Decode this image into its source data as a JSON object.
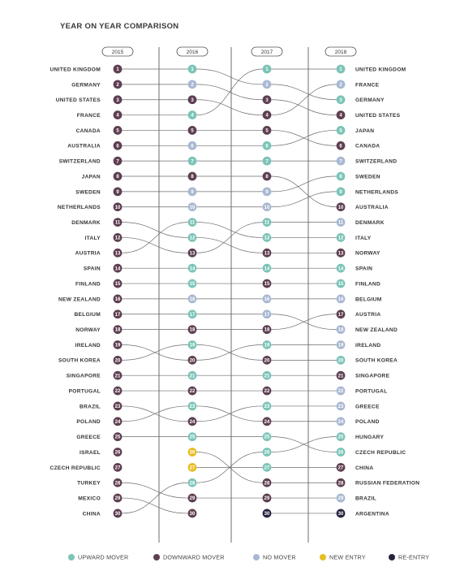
{
  "title": "YEAR ON YEAR COMPARISON",
  "chart_data": {
    "type": "bump",
    "years": [
      "2015",
      "2016",
      "2017",
      "2018"
    ],
    "colors": {
      "upward": "#7cc4b8",
      "downward": "#5e3f52",
      "none": "#a9b8d2",
      "new": "#e7bd22",
      "reentry": "#262540"
    },
    "countries_2015": [
      "UNITED KINGDOM",
      "GERMANY",
      "UNITED STATES",
      "FRANCE",
      "CANADA",
      "AUSTRALIA",
      "SWITZERLAND",
      "JAPAN",
      "SWEDEN",
      "NETHERLANDS",
      "DENMARK",
      "ITALY",
      "AUSTRIA",
      "SPAIN",
      "FINLAND",
      "NEW ZEALAND",
      "BELGIUM",
      "NORWAY",
      "IRELAND",
      "SOUTH KOREA",
      "SINGAPORE",
      "PORTUGAL",
      "BRAZIL",
      "POLAND",
      "GREECE",
      "ISRAEL",
      "CZECH REPUBLIC",
      "TURKEY",
      "MEXICO",
      "CHINA"
    ],
    "countries_2018": [
      "UNITED KINGDOM",
      "FRANCE",
      "GERMANY",
      "UNITED STATES",
      "JAPAN",
      "CANADA",
      "SWITZERLAND",
      "SWEDEN",
      "NETHERLANDS",
      "AUSTRALIA",
      "DENMARK",
      "ITALY",
      "NORWAY",
      "SPAIN",
      "FINLAND",
      "BELGIUM",
      "AUSTRIA",
      "NEW ZEALAND",
      "IRELAND",
      "SOUTH KOREA",
      "SINGAPORE",
      "PORTUGAL",
      "GREECE",
      "POLAND",
      "HUNGARY",
      "CZECH REPUBLIC",
      "CHINA",
      "RUSSIAN FEDERATION",
      "BRAZIL",
      "ARGENTINA"
    ],
    "dot_status": {
      "2015": [
        "downward",
        "downward",
        "downward",
        "downward",
        "downward",
        "downward",
        "downward",
        "downward",
        "downward",
        "downward",
        "downward",
        "downward",
        "downward",
        "downward",
        "downward",
        "downward",
        "downward",
        "downward",
        "downward",
        "downward",
        "downward",
        "downward",
        "downward",
        "downward",
        "downward",
        "downward",
        "downward",
        "downward",
        "downward",
        "downward"
      ],
      "2016": [
        "upward",
        "none",
        "downward",
        "upward",
        "downward",
        "none",
        "upward",
        "downward",
        "none",
        "none",
        "upward",
        "upward",
        "downward",
        "upward",
        "upward",
        "none",
        "upward",
        "downward",
        "upward",
        "downward",
        "upward",
        "downward",
        "upward",
        "downward",
        "upward",
        "new",
        "new",
        "upward",
        "downward",
        "downward"
      ],
      "2017": [
        "upward",
        "none",
        "downward",
        "downward",
        "downward",
        "upward",
        "upward",
        "downward",
        "none",
        "none",
        "upward",
        "upward",
        "downward",
        "upward",
        "downward",
        "none",
        "none",
        "downward",
        "upward",
        "downward",
        "upward",
        "downward",
        "upward",
        "downward",
        "upward",
        "upward",
        "upward",
        "downward",
        "downward",
        "reentry"
      ],
      "2018": [
        "upward",
        "none",
        "upward",
        "downward",
        "upward",
        "downward",
        "none",
        "upward",
        "upward",
        "downward",
        "none",
        "upward",
        "downward",
        "upward",
        "upward",
        "none",
        "downward",
        "none",
        "none",
        "upward",
        "downward",
        "none",
        "none",
        "none",
        "upward",
        "upward",
        "downward",
        "downward",
        "none",
        "reentry"
      ]
    },
    "links": [
      [
        [
          1,
          1
        ],
        [
          2,
          2
        ],
        [
          3,
          3
        ],
        [
          4,
          4
        ],
        [
          5,
          5
        ],
        [
          6,
          6
        ],
        [
          7,
          7
        ],
        [
          8,
          8
        ],
        [
          9,
          9
        ],
        [
          10,
          10
        ],
        [
          11,
          12
        ],
        [
          12,
          13
        ],
        [
          13,
          11
        ],
        [
          14,
          14
        ],
        [
          15,
          15
        ],
        [
          16,
          16
        ],
        [
          17,
          17
        ],
        [
          18,
          18
        ],
        [
          19,
          20
        ],
        [
          20,
          19
        ],
        [
          21,
          21
        ],
        [
          22,
          22
        ],
        [
          23,
          24
        ],
        [
          24,
          23
        ],
        [
          25,
          25
        ],
        [
          28,
          29
        ],
        [
          29,
          30
        ],
        [
          30,
          28
        ]
      ],
      [
        [
          1,
          2
        ],
        [
          2,
          3
        ],
        [
          3,
          4
        ],
        [
          4,
          1
        ],
        [
          5,
          5
        ],
        [
          6,
          6
        ],
        [
          7,
          7
        ],
        [
          8,
          8
        ],
        [
          9,
          9
        ],
        [
          10,
          10
        ],
        [
          11,
          12
        ],
        [
          12,
          13
        ],
        [
          13,
          11
        ],
        [
          14,
          14
        ],
        [
          15,
          15
        ],
        [
          16,
          16
        ],
        [
          17,
          17
        ],
        [
          18,
          18
        ],
        [
          19,
          20
        ],
        [
          20,
          19
        ],
        [
          21,
          21
        ],
        [
          22,
          22
        ],
        [
          23,
          24
        ],
        [
          24,
          23
        ],
        [
          25,
          25
        ],
        [
          26,
          28
        ],
        [
          27,
          27
        ],
        [
          28,
          26
        ],
        [
          29,
          29
        ]
      ],
      [
        [
          1,
          1
        ],
        [
          2,
          3
        ],
        [
          3,
          4
        ],
        [
          4,
          2
        ],
        [
          5,
          6
        ],
        [
          6,
          5
        ],
        [
          7,
          7
        ],
        [
          8,
          10
        ],
        [
          9,
          8
        ],
        [
          10,
          9
        ],
        [
          11,
          11
        ],
        [
          12,
          12
        ],
        [
          13,
          13
        ],
        [
          14,
          14
        ],
        [
          15,
          15
        ],
        [
          16,
          16
        ],
        [
          17,
          18
        ],
        [
          18,
          17
        ],
        [
          19,
          19
        ],
        [
          20,
          20
        ],
        [
          21,
          21
        ],
        [
          22,
          22
        ],
        [
          23,
          23
        ],
        [
          24,
          24
        ],
        [
          25,
          26
        ],
        [
          26,
          25
        ],
        [
          27,
          27
        ],
        [
          28,
          28
        ],
        [
          29,
          29
        ],
        [
          30,
          30
        ]
      ]
    ],
    "legend": [
      {
        "key": "upward",
        "label": "UPWARD MOVER"
      },
      {
        "key": "downward",
        "label": "DOWNWARD MOVER"
      },
      {
        "key": "none",
        "label": "NO MOVER"
      },
      {
        "key": "new",
        "label": "NEW ENTRY"
      },
      {
        "key": "reentry",
        "label": "RE-ENTRY"
      }
    ]
  }
}
